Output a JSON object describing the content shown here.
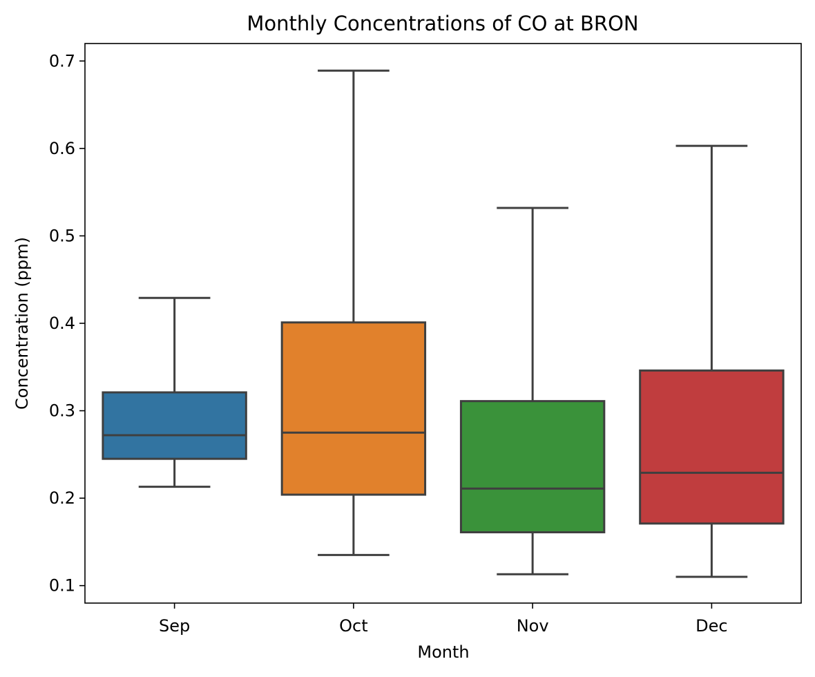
{
  "chart_data": {
    "type": "box",
    "title": "Monthly Concentrations of CO at BRON",
    "xlabel": "Month",
    "ylabel": "Concentration (ppm)",
    "ylim": [
      0.08,
      0.72
    ],
    "yticks": [
      0.1,
      0.2,
      0.3,
      0.4,
      0.5,
      0.6,
      0.7
    ],
    "ytick_labels": [
      "0.1",
      "0.2",
      "0.3",
      "0.4",
      "0.5",
      "0.6",
      "0.7"
    ],
    "categories": [
      "Sep",
      "Oct",
      "Nov",
      "Dec"
    ],
    "boxes": [
      {
        "category": "Sep",
        "whisker_low": 0.213,
        "q1": 0.245,
        "median": 0.272,
        "q3": 0.321,
        "whisker_high": 0.429,
        "color": "#3274a1"
      },
      {
        "category": "Oct",
        "whisker_low": 0.135,
        "q1": 0.204,
        "median": 0.275,
        "q3": 0.401,
        "whisker_high": 0.689,
        "color": "#e1812c"
      },
      {
        "category": "Nov",
        "whisker_low": 0.113,
        "q1": 0.161,
        "median": 0.211,
        "q3": 0.311,
        "whisker_high": 0.532,
        "color": "#3a923a"
      },
      {
        "category": "Dec",
        "whisker_low": 0.11,
        "q1": 0.171,
        "median": 0.229,
        "q3": 0.346,
        "whisker_high": 0.603,
        "color": "#c03d3e"
      }
    ],
    "grid": false,
    "line_color": "#3f3f3f"
  }
}
